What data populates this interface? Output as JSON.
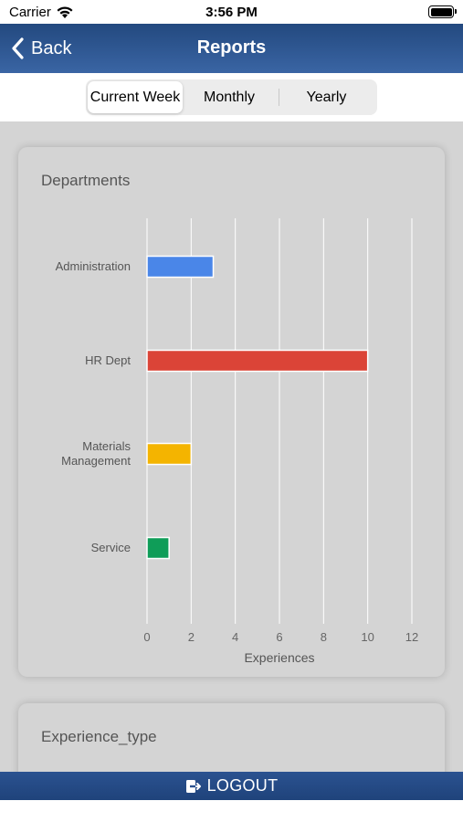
{
  "status_bar": {
    "carrier": "Carrier",
    "time": "3:56 PM"
  },
  "nav": {
    "back_label": "Back",
    "title": "Reports"
  },
  "segments": {
    "items": [
      "Current Week",
      "Monthly",
      "Yearly"
    ],
    "selected": "Current Week"
  },
  "cards": [
    {
      "title": "Departments"
    },
    {
      "title": "Experience_type"
    }
  ],
  "chart_data": {
    "type": "bar",
    "orientation": "horizontal",
    "categories": [
      "Administration",
      "HR Dept",
      "Materials Management",
      "Service"
    ],
    "category_lines": [
      [
        "Administration"
      ],
      [
        "HR Dept"
      ],
      [
        "Materials",
        "Management"
      ],
      [
        "Service"
      ]
    ],
    "values": [
      3,
      10,
      2,
      1
    ],
    "colors": [
      "#4a86e8",
      "#db4437",
      "#f4b400",
      "#0f9d58"
    ],
    "xlabel": "Experiences",
    "xlim": [
      0,
      12
    ],
    "xticks": [
      0,
      2,
      4,
      6,
      8,
      10,
      12
    ],
    "grid": true,
    "legend": false
  },
  "logout": {
    "label": "LOGOUT"
  }
}
